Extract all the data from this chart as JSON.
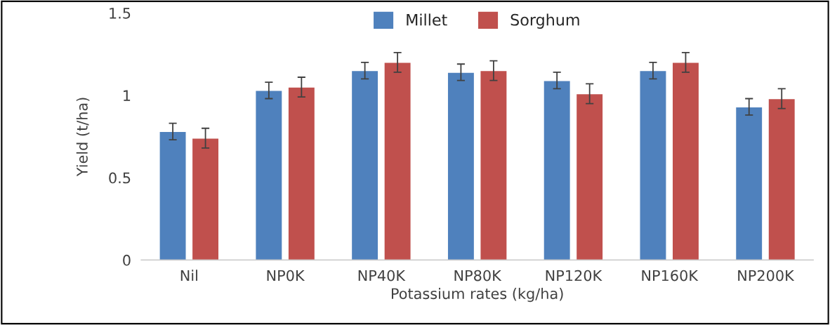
{
  "chart_data": {
    "type": "bar",
    "xlabel": "Potassium rates (kg/ha)",
    "ylabel": "Yield (t/ha)",
    "categories": [
      "Nil",
      "NP0K",
      "NP40K",
      "NP80K",
      "NP120K",
      "NP160K",
      "NP200K"
    ],
    "series": [
      {
        "name": "Millet",
        "color": "#4f81bd",
        "values": [
          0.78,
          1.03,
          1.15,
          1.14,
          1.09,
          1.15,
          0.93
        ],
        "errors": [
          0.05,
          0.05,
          0.05,
          0.05,
          0.05,
          0.05,
          0.05
        ]
      },
      {
        "name": "Sorghum",
        "color": "#c0504d",
        "values": [
          0.74,
          1.05,
          1.2,
          1.15,
          1.01,
          1.2,
          0.98
        ],
        "errors": [
          0.06,
          0.06,
          0.06,
          0.06,
          0.06,
          0.06,
          0.06
        ]
      }
    ],
    "ylim": [
      0,
      1.5
    ],
    "yticks": [
      0,
      0.5,
      1,
      1.5
    ],
    "grid": false,
    "legend": "top"
  }
}
